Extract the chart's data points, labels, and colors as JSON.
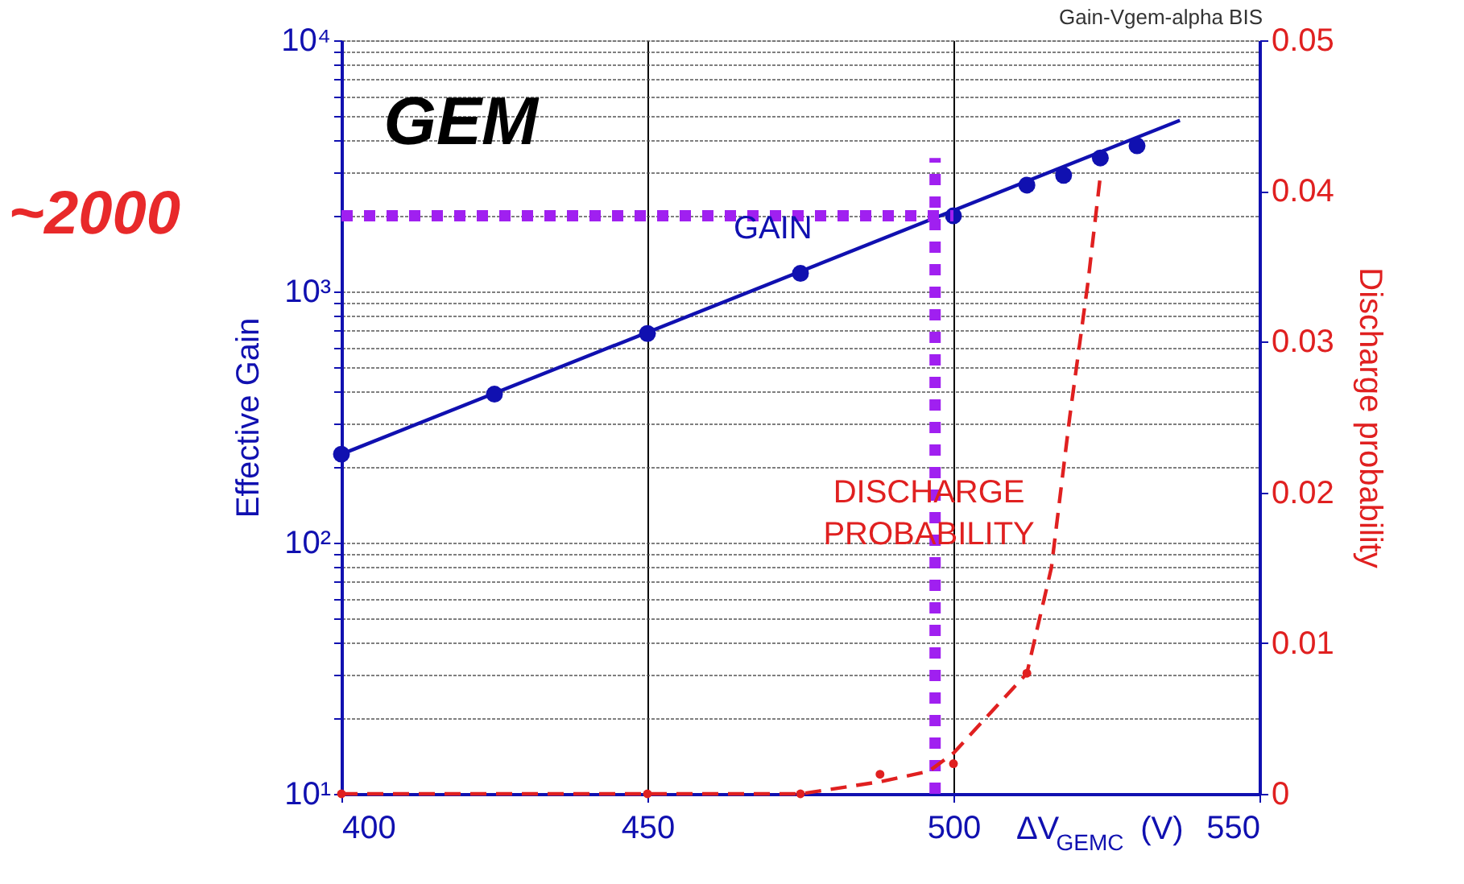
{
  "chart_data": {
    "type": "line",
    "xlabel": "ΔV$_{GEMC}$ (V)",
    "ylabel": "Effective Gain",
    "y2label": "Discharge probability",
    "xlim": [
      400,
      550
    ],
    "xticks": [
      400,
      450,
      500,
      550
    ],
    "ylim": [
      10,
      10000
    ],
    "log": "y",
    "yticks": [
      {
        "value": 10,
        "label": "10¹"
      },
      {
        "value": 20,
        "label": null
      },
      {
        "value": 30,
        "label": null
      },
      {
        "value": 40,
        "label": null
      },
      {
        "value": 50,
        "label": null
      },
      {
        "value": 60,
        "label": null
      },
      {
        "value": 70,
        "label": null
      },
      {
        "value": 80,
        "label": null
      },
      {
        "value": 90,
        "label": null
      },
      {
        "value": 100,
        "label": "10²"
      },
      {
        "value": 200,
        "label": null
      },
      {
        "value": 300,
        "label": null
      },
      {
        "value": 400,
        "label": null
      },
      {
        "value": 500,
        "label": null
      },
      {
        "value": 600,
        "label": null
      },
      {
        "value": 700,
        "label": null
      },
      {
        "value": 800,
        "label": null
      },
      {
        "value": 900,
        "label": null
      },
      {
        "value": 1000,
        "label": "10³"
      },
      {
        "value": 2000,
        "label": null
      },
      {
        "value": 3000,
        "label": null
      },
      {
        "value": 4000,
        "label": null
      },
      {
        "value": 5000,
        "label": null
      },
      {
        "value": 6000,
        "label": null
      },
      {
        "value": 7000,
        "label": null
      },
      {
        "value": 8000,
        "label": null
      },
      {
        "value": 9000,
        "label": null
      },
      {
        "value": 10000,
        "label": "10⁴"
      }
    ],
    "y2lim": [
      0,
      0.05
    ],
    "y2ticks": [
      0,
      0.01,
      0.02,
      0.03,
      0.04,
      0.05
    ],
    "grid": true,
    "series": [
      {
        "color": "#1010b0",
        "marker": "none",
        "line_style": "solid",
        "x": [
          400,
          537
        ],
        "values": [
          225,
          4800
        ]
      },
      {
        "type": "scatter",
        "color": "#1010b0",
        "marker": "circle",
        "x": [
          400,
          425,
          450,
          475,
          500,
          512,
          518,
          524,
          530
        ],
        "values": [
          225,
          390,
          680,
          1180,
          2000,
          2650,
          2900,
          3400,
          3800
        ]
      },
      {
        "axis": "y2",
        "color": "#e02020",
        "marker": "none",
        "line_style": "dashed",
        "x": [
          400,
          450,
          475,
          488,
          496,
          500,
          512,
          516,
          519,
          522,
          524
        ],
        "values": [
          0,
          0,
          0,
          0.0008,
          0.0015,
          0.0027,
          0.008,
          0.015,
          0.025,
          0.034,
          0.041
        ]
      },
      {
        "type": "scatter",
        "axis": "y2",
        "color": "#e02020",
        "marker": "circle",
        "x": [
          400,
          450,
          475,
          488,
          500,
          512
        ],
        "values": [
          0,
          0,
          0,
          0.0013,
          0.002,
          0.008
        ]
      },
      {
        "color": "#a020f0",
        "marker": "none",
        "line_style": "dotted",
        "x": [
          400,
          500
        ],
        "values": [
          2000,
          2000
        ]
      },
      {
        "color": "#a020f0",
        "marker": "none",
        "line_style": "dotted",
        "x": [
          497,
          497
        ],
        "values": [
          10,
          3400
        ]
      }
    ],
    "annotations": [
      "GEM",
      "Gain-Vgem-alpha BIS",
      "~2000",
      "GAIN",
      "DISCHARGE PROBABILITY"
    ]
  }
}
